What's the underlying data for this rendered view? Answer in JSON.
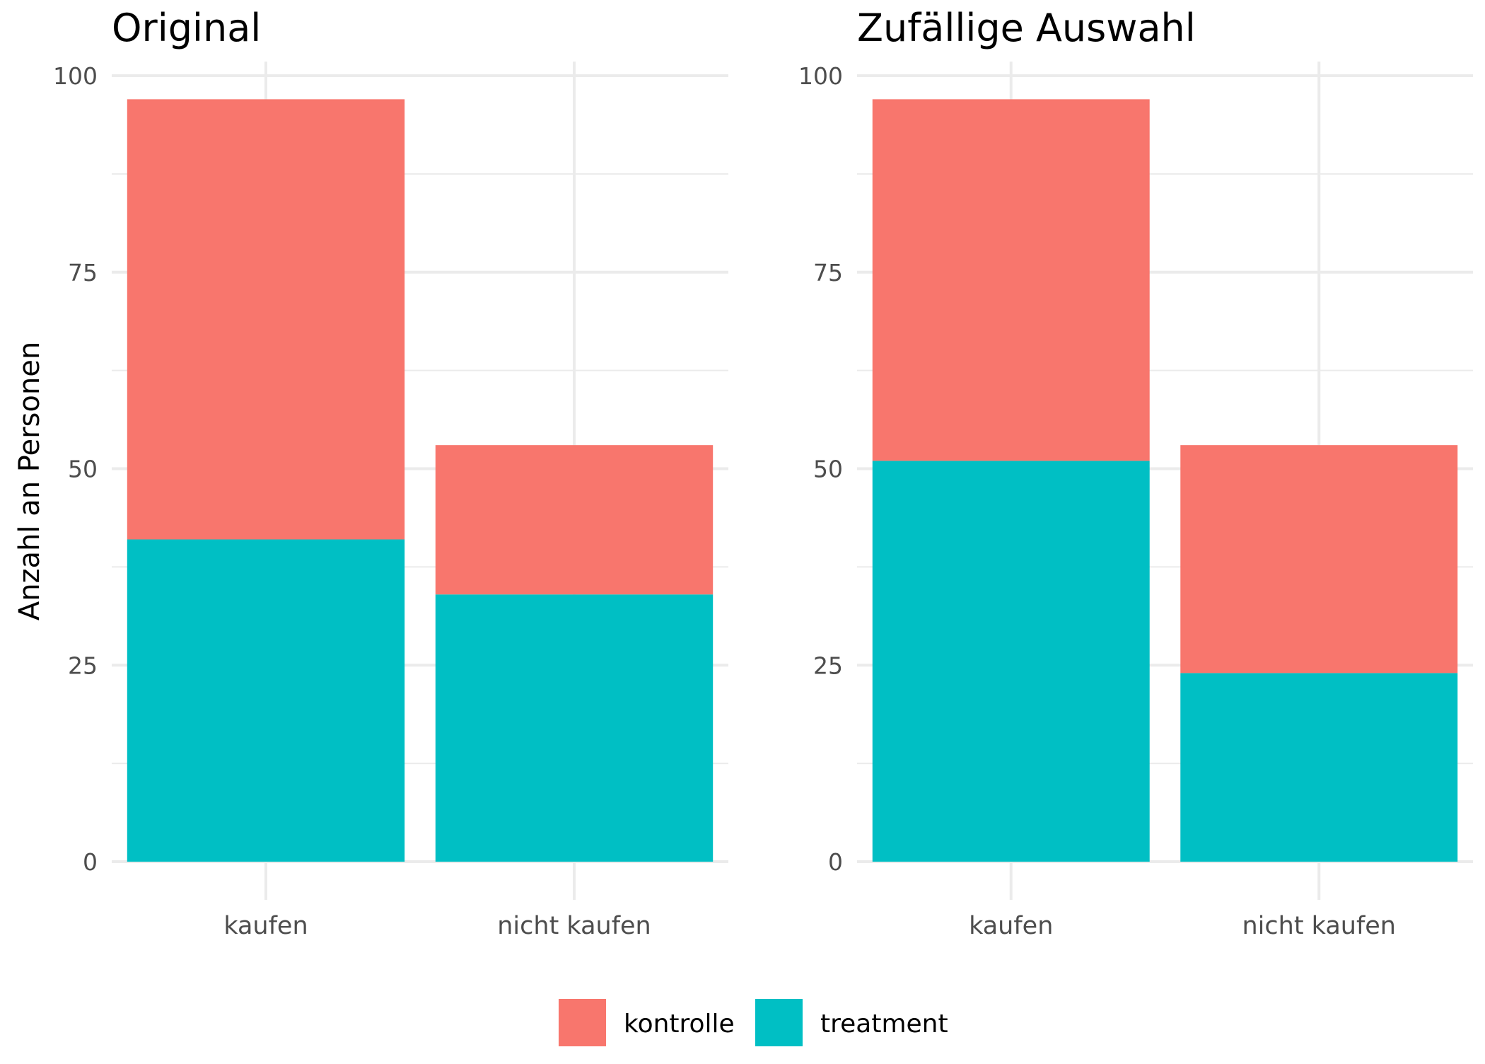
{
  "ylabel": "Anzahl an Personen",
  "legend": {
    "placement": "bottom",
    "items": [
      {
        "name": "kontrolle",
        "color": "#F8766D"
      },
      {
        "name": "treatment",
        "color": "#00BFC4"
      }
    ]
  },
  "chart_data": [
    {
      "type": "bar",
      "stacked": true,
      "title": "Original",
      "categories": [
        "kaufen",
        "nicht kaufen"
      ],
      "series": [
        {
          "name": "treatment",
          "values": [
            41,
            34
          ]
        },
        {
          "name": "kontrolle",
          "values": [
            56,
            19
          ]
        }
      ],
      "ylim": [
        0,
        100
      ],
      "yticks": [
        0,
        25,
        50,
        75,
        100
      ],
      "grid": true
    },
    {
      "type": "bar",
      "stacked": true,
      "title": "Zufällige Auswahl",
      "categories": [
        "kaufen",
        "nicht kaufen"
      ],
      "series": [
        {
          "name": "treatment",
          "values": [
            51,
            24
          ]
        },
        {
          "name": "kontrolle",
          "values": [
            46,
            29
          ]
        }
      ],
      "ylim": [
        0,
        100
      ],
      "yticks": [
        0,
        25,
        50,
        75,
        100
      ],
      "grid": true
    }
  ]
}
